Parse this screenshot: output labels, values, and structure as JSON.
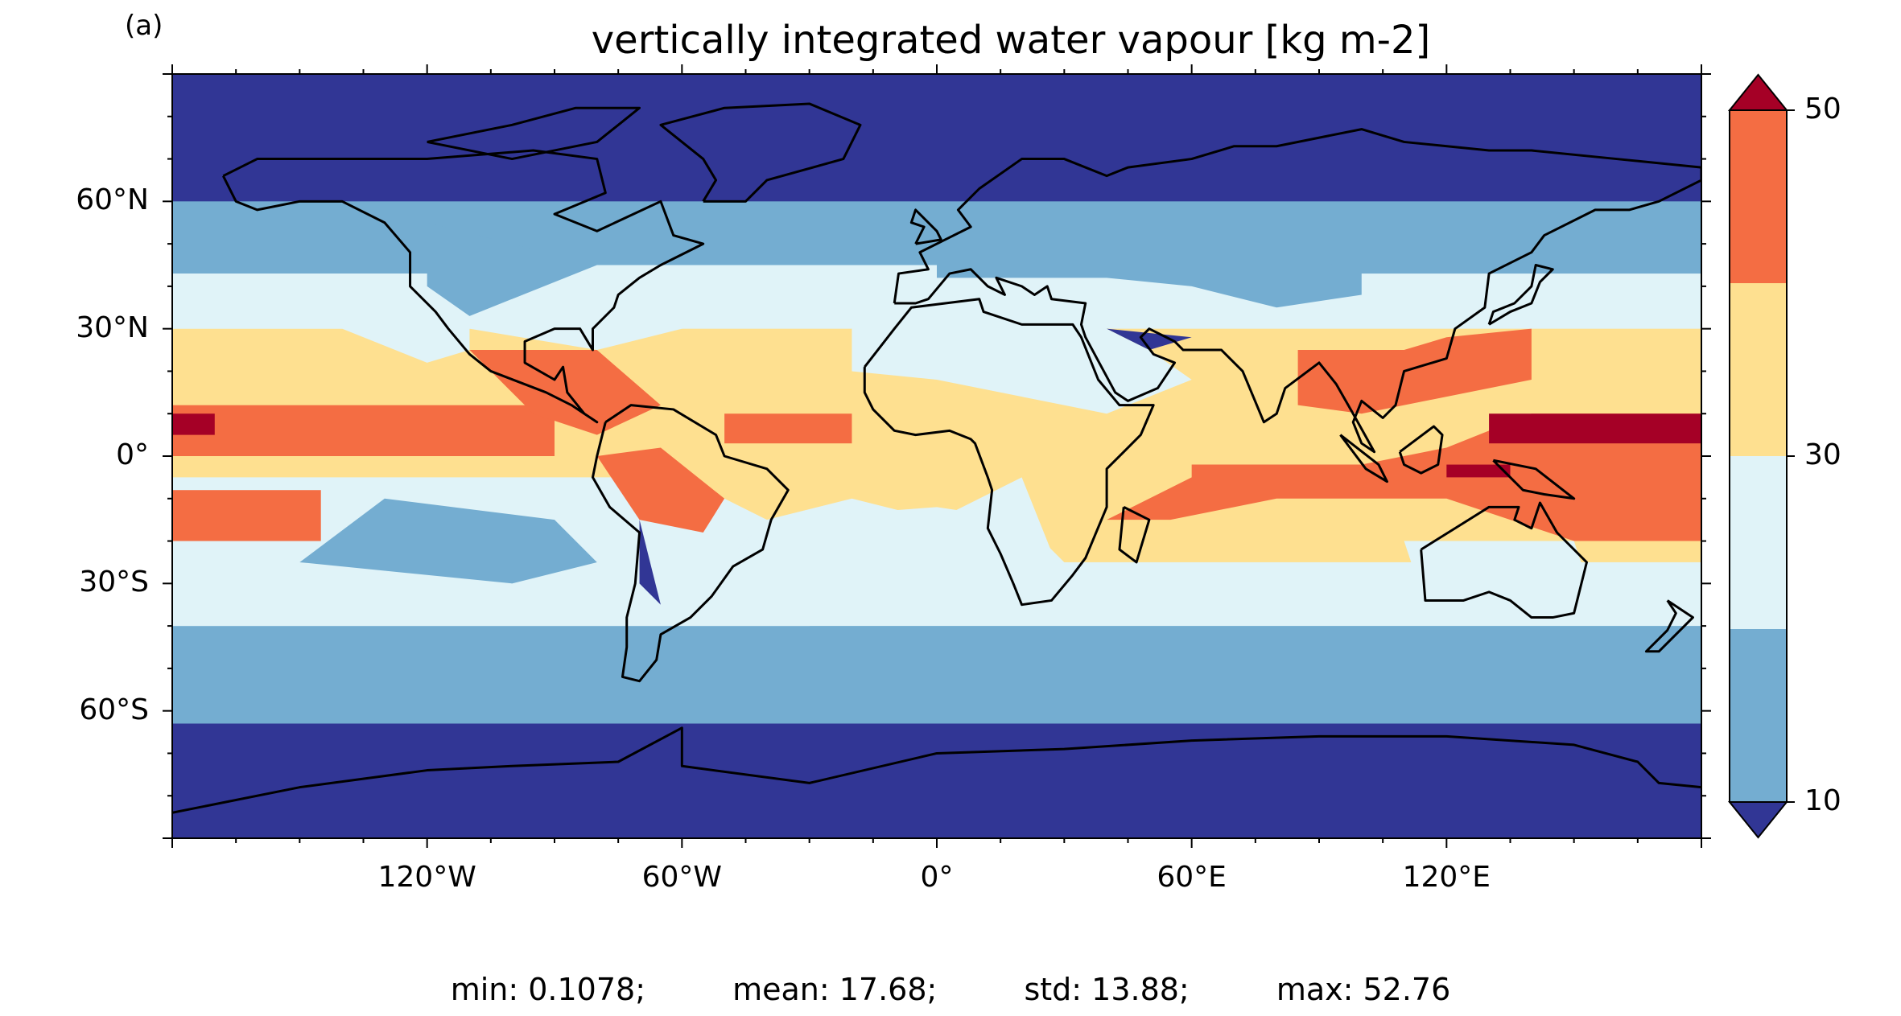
{
  "panel_label": "(a)",
  "title": "vertically integrated water vapour [kg m-2]",
  "map": {
    "projection": "PlateCarree",
    "extent": {
      "lon": [
        -180,
        180
      ],
      "lat": [
        -90,
        90
      ]
    },
    "lat_ticks": [
      {
        "value": 60,
        "label": "60°N"
      },
      {
        "value": 30,
        "label": "30°N"
      },
      {
        "value": 0,
        "label": "0°"
      },
      {
        "value": -30,
        "label": "30°S"
      },
      {
        "value": -60,
        "label": "60°S"
      }
    ],
    "lon_ticks": [
      {
        "value": -120,
        "label": "120°W"
      },
      {
        "value": -60,
        "label": "60°W"
      },
      {
        "value": 0,
        "label": "0°"
      },
      {
        "value": 60,
        "label": "60°E"
      },
      {
        "value": 120,
        "label": "120°E"
      }
    ],
    "coastlines": true
  },
  "colorbar": {
    "levels": [
      10,
      20,
      30,
      40,
      50
    ],
    "tick_labels": [
      {
        "value": 50,
        "label": "50"
      },
      {
        "value": 30,
        "label": "30"
      },
      {
        "value": 10,
        "label": "10"
      }
    ],
    "colors": {
      "under": "#313695",
      "10-20": "#74add1",
      "20-30": "#e0f3f8",
      "30-40": "#fee090",
      "40-50": "#f46d43",
      "over": "#a50026"
    },
    "extend": "both"
  },
  "stats": {
    "min": "min: 0.1078;",
    "mean": "mean: 17.68;",
    "std": "std: 13.88;",
    "max": "max: 52.76"
  }
}
